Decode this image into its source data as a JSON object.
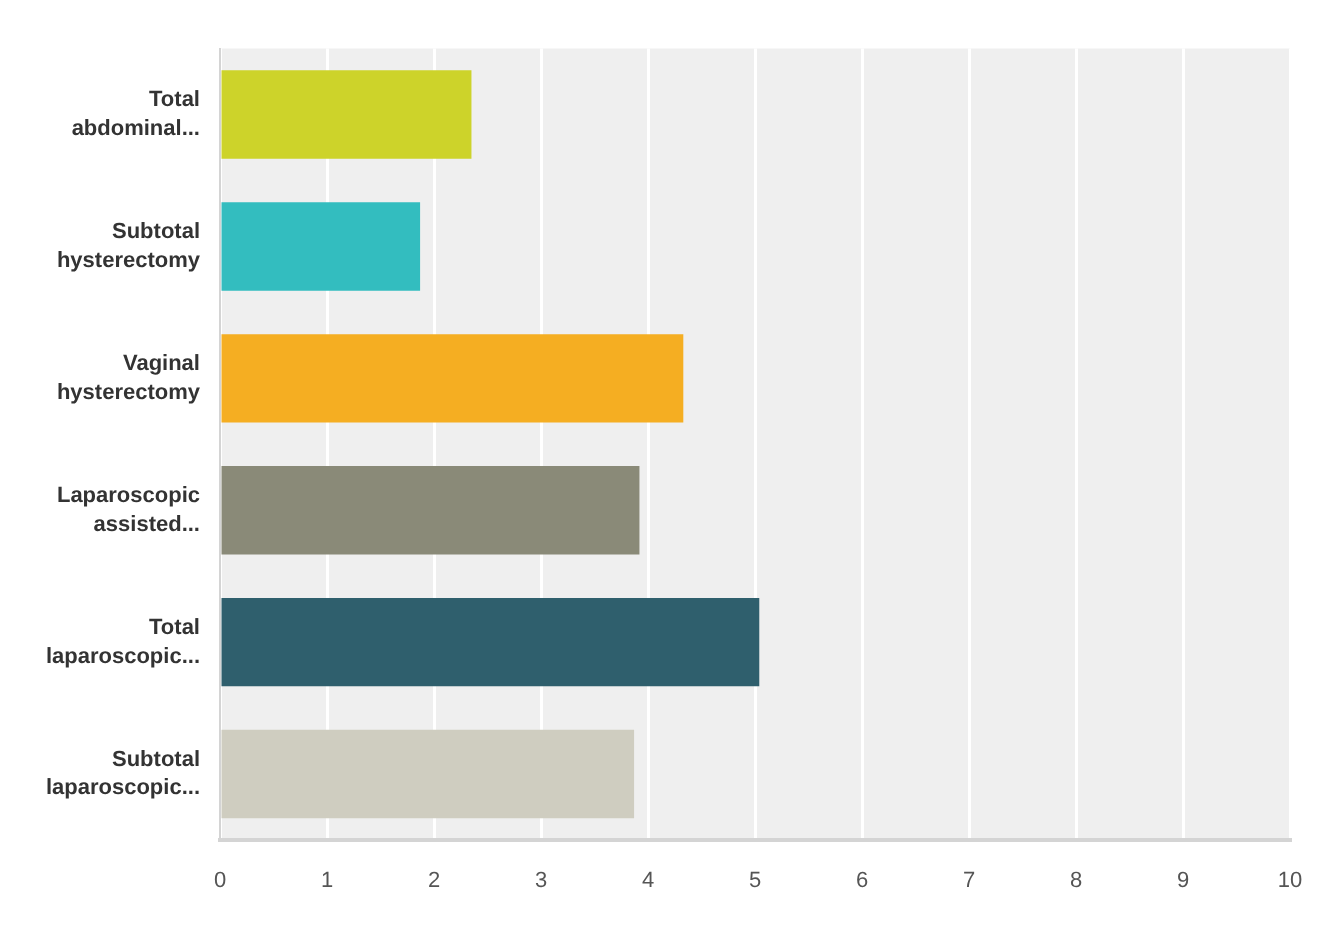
{
  "chart_data": {
    "type": "bar",
    "orientation": "horizontal",
    "categories": [
      "Total abdominal...",
      "Subtotal hysterectomy",
      "Vaginal hysterectomy",
      "Laparoscopic assisted...",
      "Total laparoscopic...",
      "Subtotal laparoscopic..."
    ],
    "values": [
      2.35,
      1.87,
      4.33,
      3.92,
      5.04,
      3.87
    ],
    "colors": [
      "#cdd32a",
      "#33bdbf",
      "#f5ae22",
      "#8a8a78",
      "#2f5f6d",
      "#cfcdc0"
    ],
    "xlim": [
      0,
      10
    ],
    "xticks": [
      0,
      1,
      2,
      3,
      4,
      5,
      6,
      7,
      8,
      9,
      10
    ],
    "grid": "x"
  }
}
